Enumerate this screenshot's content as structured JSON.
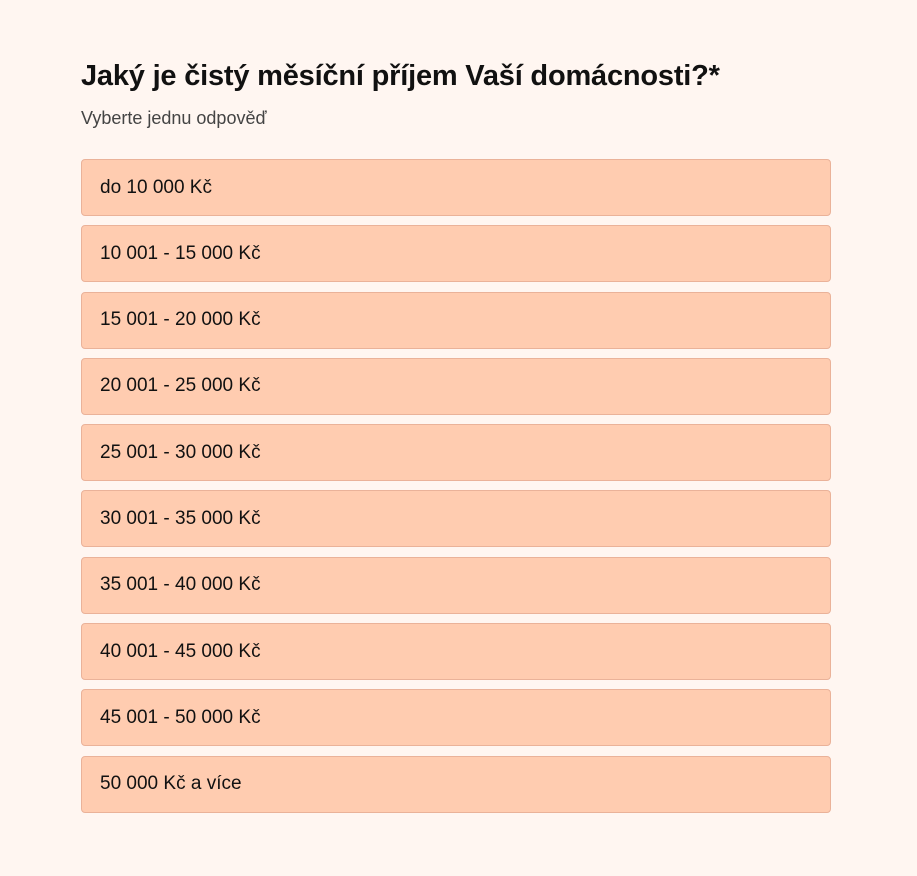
{
  "question": {
    "title": "Jaký je čistý měsíční příjem Vaší domácnosti?*",
    "hint": "Vyberte jednu odpověď",
    "options": [
      "do 10 000 Kč",
      "10 001 - 15 000 Kč",
      "15 001 - 20 000 Kč",
      "20 001 - 25 000 Kč",
      "25 001 - 30 000 Kč",
      "30 001 - 35 000 Kč",
      "35 001 - 40 000 Kč",
      "40 001 - 45 000 Kč",
      "45 001 - 50 000 Kč",
      "50 000 Kč a více"
    ]
  },
  "colors": {
    "background": "#fff6f1",
    "option": "#ffccb0",
    "option_border": "#eab299"
  }
}
